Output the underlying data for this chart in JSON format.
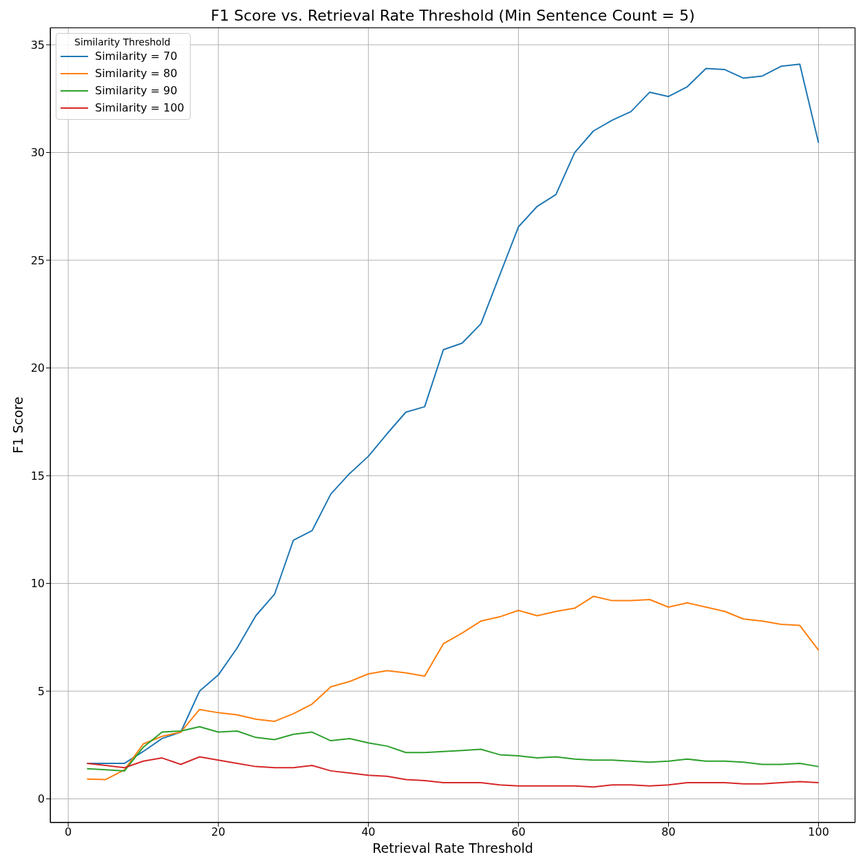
{
  "chart_data": {
    "type": "line",
    "title": "F1 Score vs. Retrieval Rate Threshold (Min Sentence Count = 5)",
    "xlabel": "Retrieval Rate Threshold",
    "ylabel": "F1 Score",
    "legend_title": "Similarity Threshold",
    "x": [
      2.5,
      5,
      7.5,
      10,
      12.5,
      15,
      17.5,
      20,
      22.5,
      25,
      27.5,
      30,
      32.5,
      35,
      37.5,
      40,
      42.5,
      45,
      47.5,
      50,
      52.5,
      55,
      57.5,
      60,
      62.5,
      65,
      67.5,
      70,
      72.5,
      75,
      77.5,
      80,
      82.5,
      85,
      87.5,
      90,
      92.5,
      95,
      97.5,
      100
    ],
    "series": [
      {
        "name": "Similarity = 70",
        "color": "#1f77b4",
        "values": [
          1.65,
          1.65,
          1.65,
          2.2,
          2.8,
          3.1,
          5.0,
          5.75,
          7.0,
          8.5,
          9.5,
          12.0,
          12.45,
          14.15,
          15.1,
          15.9,
          16.95,
          17.95,
          18.2,
          20.85,
          21.15,
          22.05,
          24.3,
          26.55,
          27.5,
          28.05,
          30.0,
          31.0,
          31.5,
          31.9,
          32.8,
          32.6,
          33.05,
          33.9,
          33.85,
          33.45,
          33.55,
          34.0,
          34.1,
          30.45
        ]
      },
      {
        "name": "Similarity = 80",
        "color": "#ff7f0e",
        "values": [
          0.92,
          0.9,
          1.35,
          2.55,
          2.9,
          3.1,
          4.15,
          4.0,
          3.9,
          3.7,
          3.6,
          3.95,
          4.4,
          5.2,
          5.45,
          5.8,
          5.95,
          5.85,
          5.7,
          7.2,
          7.7,
          8.25,
          8.45,
          8.75,
          8.5,
          8.7,
          8.85,
          9.4,
          9.2,
          9.2,
          9.25,
          8.9,
          9.1,
          8.9,
          8.7,
          8.35,
          8.25,
          8.1,
          8.05,
          6.9
        ]
      },
      {
        "name": "Similarity = 90",
        "color": "#2ca02c",
        "values": [
          1.4,
          1.35,
          1.3,
          2.4,
          3.1,
          3.15,
          3.35,
          3.1,
          3.15,
          2.85,
          2.75,
          3.0,
          3.1,
          2.7,
          2.8,
          2.6,
          2.45,
          2.15,
          2.15,
          2.2,
          2.25,
          2.3,
          2.05,
          2.0,
          1.9,
          1.95,
          1.85,
          1.8,
          1.8,
          1.75,
          1.7,
          1.75,
          1.85,
          1.75,
          1.75,
          1.7,
          1.6,
          1.6,
          1.65,
          1.5
        ]
      },
      {
        "name": "Similarity = 100",
        "color": "#d62728",
        "values": [
          1.65,
          1.55,
          1.45,
          1.75,
          1.9,
          1.6,
          1.95,
          1.8,
          1.65,
          1.5,
          1.45,
          1.45,
          1.55,
          1.3,
          1.2,
          1.1,
          1.05,
          0.9,
          0.85,
          0.75,
          0.75,
          0.75,
          0.65,
          0.6,
          0.6,
          0.6,
          0.6,
          0.55,
          0.65,
          0.65,
          0.6,
          0.65,
          0.75,
          0.75,
          0.75,
          0.7,
          0.7,
          0.75,
          0.8,
          0.75
        ]
      }
    ],
    "xlim": [
      -2.4,
      104.9
    ],
    "xticks": [
      0,
      20,
      40,
      60,
      80,
      100
    ],
    "ylim": [
      -1.1,
      35.8
    ],
    "yticks": [
      0,
      5,
      10,
      15,
      20,
      25,
      30,
      35
    ],
    "grid": true,
    "legend": "top left",
    "marker": "none",
    "line_style": "solid"
  }
}
